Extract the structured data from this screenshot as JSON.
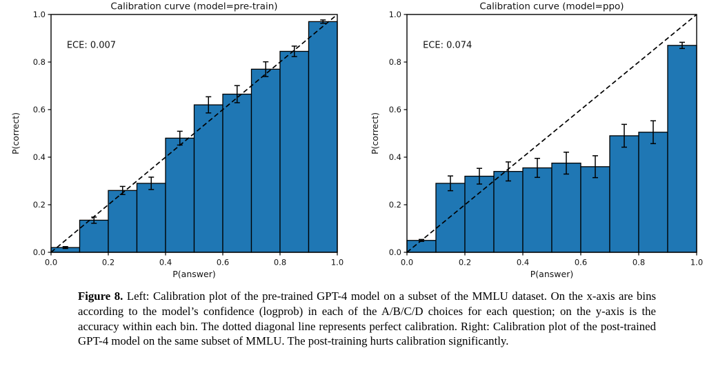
{
  "figure": {
    "caption_label": "Figure 8.",
    "caption_text": "Left: Calibration plot of the pre-trained GPT-4 model on a subset of the MMLU dataset. On the x-axis are bins according to the model’s confidence (logprob) in each of the A/B/C/D choices for each question; on the y-axis is the accuracy within each bin. The dotted diagonal line represents perfect calibration. Right: Calibration plot of the post-trained GPT-4 model on the same subset of MMLU. The post-training hurts calibration significantly."
  },
  "colors": {
    "background": "#ffffff",
    "bar_fill": "#1f77b4",
    "bar_edge": "#000000",
    "error_bar": "#000000",
    "diagonal": "#000000",
    "axis": "#000000",
    "text": "#111111"
  },
  "chart_data": [
    {
      "type": "bar",
      "title": "Calibration curve (model=pre-train)",
      "annotation": "ECE: 0.007",
      "xlabel": "P(answer)",
      "ylabel": "P(correct)",
      "xlim": [
        0.0,
        1.0
      ],
      "ylim": [
        0.0,
        1.0
      ],
      "grid": false,
      "legend": null,
      "x_ticks": [
        "0.0",
        "0.2",
        "0.4",
        "0.6",
        "0.8",
        "1.0"
      ],
      "y_ticks": [
        "0.0",
        "0.2",
        "0.4",
        "0.6",
        "0.8",
        "1.0"
      ],
      "bin_width": 0.1,
      "bin_centers": [
        0.05,
        0.15,
        0.25,
        0.35,
        0.45,
        0.55,
        0.65,
        0.75,
        0.85,
        0.95
      ],
      "values": [
        0.02,
        0.135,
        0.26,
        0.29,
        0.48,
        0.62,
        0.665,
        0.77,
        0.845,
        0.97
      ],
      "errors": [
        0.004,
        0.013,
        0.017,
        0.026,
        0.029,
        0.034,
        0.036,
        0.031,
        0.022,
        0.007
      ],
      "diagonal": {
        "from": [
          0,
          0
        ],
        "to": [
          1,
          1
        ],
        "style": "dashed",
        "meaning": "perfect calibration"
      }
    },
    {
      "type": "bar",
      "title": "Calibration curve (model=ppo)",
      "annotation": "ECE: 0.074",
      "xlabel": "P(answer)",
      "ylabel": "P(correct)",
      "xlim": [
        0.0,
        1.0
      ],
      "ylim": [
        0.0,
        1.0
      ],
      "grid": false,
      "legend": null,
      "x_ticks": [
        "0.0",
        "0.2",
        "0.4",
        "0.6",
        "0.8",
        "1.0"
      ],
      "y_ticks": [
        "0.0",
        "0.2",
        "0.4",
        "0.6",
        "0.8",
        "1.0"
      ],
      "bin_width": 0.1,
      "bin_centers": [
        0.05,
        0.15,
        0.25,
        0.35,
        0.45,
        0.55,
        0.65,
        0.75,
        0.85,
        0.95
      ],
      "values": [
        0.05,
        0.29,
        0.32,
        0.34,
        0.355,
        0.375,
        0.36,
        0.49,
        0.505,
        0.87
      ],
      "errors": [
        0.004,
        0.031,
        0.033,
        0.04,
        0.04,
        0.046,
        0.046,
        0.048,
        0.048,
        0.013
      ],
      "diagonal": {
        "from": [
          0,
          0
        ],
        "to": [
          1,
          1
        ],
        "style": "dashed",
        "meaning": "perfect calibration"
      }
    }
  ]
}
